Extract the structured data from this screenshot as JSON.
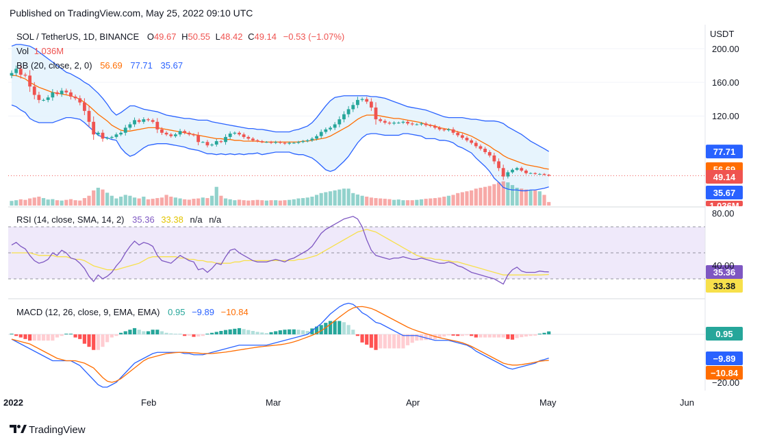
{
  "published": "Published on TradingView.com, May 25, 2022 09:10 UTC",
  "footer_brand": "TradingView",
  "currency_label": "USDT",
  "main_legend": {
    "symbol": "SOL / TetherUS, 1D, BINANCE",
    "o_label": "O",
    "o": "49.67",
    "h_label": "H",
    "h": "50.55",
    "l_label": "L",
    "l": "48.42",
    "c_label": "C",
    "c": "49.14",
    "change": "−0.53 (−1.07%)",
    "vol_label": "Vol",
    "vol": "1.036M",
    "bb_label": "BB (20, close, 2, 0)",
    "bb_basis": "56.69",
    "bb_upper": "77.71",
    "bb_lower": "35.67"
  },
  "rsi_legend": {
    "label": "RSI (14, close, SMA, 14, 2)",
    "rsi": "35.36",
    "sma": "33.38",
    "na1": "n/a",
    "na2": "n/a"
  },
  "macd_legend": {
    "label": "MACD (12, 26, close, 9, EMA, EMA)",
    "hist": "0.95",
    "macd": "−9.89",
    "signal": "−10.84"
  },
  "price_ticks": [
    "200.00",
    "160.00",
    "120.00"
  ],
  "rsi_ticks": [
    "80.00",
    "40.00"
  ],
  "macd_ticks": [
    "−20.00"
  ],
  "x_ticks": [
    "2022",
    "Feb",
    "Mar",
    "Apr",
    "May",
    "Jun"
  ],
  "tags": {
    "bb_upper": "77.71",
    "bb_basis": "56.69",
    "close": "49.14",
    "bb_lower": "35.67",
    "volume": "1.036M",
    "rsi": "35.36",
    "rsi_sma": "33.38",
    "macd_hist": "0.95",
    "macd": "−9.89",
    "macd_signal": "−10.84"
  },
  "colors": {
    "up": "#26a69a",
    "down": "#ef5350",
    "bb_basis": "#ff6d00",
    "bb_band": "#2962ff",
    "bb_fill": "#e3f2fd",
    "rsi_line": "#7e57c2",
    "rsi_sma": "#f7e04b",
    "rsi_bg": "#efe9fa",
    "macd_line": "#2962ff",
    "signal_line": "#ff6d00"
  },
  "chart_data": {
    "type": "candlestick",
    "title": "SOL / TetherUS, 1D, BINANCE",
    "start_date": "2021-12-31",
    "interval": "1D",
    "ylabel": "USDT",
    "ylim": [
      20,
      215
    ],
    "close": [
      171,
      176,
      169,
      168,
      155,
      145,
      139,
      139,
      142,
      148,
      146,
      150,
      148,
      143,
      141,
      136,
      126,
      113,
      98,
      100,
      93,
      94,
      95,
      98,
      100,
      106,
      110,
      115,
      113,
      116,
      115,
      113,
      104,
      100,
      98,
      96,
      98,
      102,
      100,
      98,
      97,
      89,
      89,
      85,
      86,
      90,
      89,
      95,
      99,
      100,
      98,
      95,
      93,
      91,
      90,
      89,
      89,
      88,
      89,
      88,
      87,
      88,
      88,
      89,
      90,
      91,
      93,
      96,
      101,
      104,
      106,
      110,
      116,
      122,
      128,
      133,
      139,
      140,
      137,
      130,
      116,
      114,
      112,
      111,
      112,
      112,
      113,
      111,
      110,
      110,
      111,
      109,
      108,
      106,
      104,
      103,
      104,
      100,
      97,
      94,
      91,
      88,
      84,
      81,
      77,
      73,
      66,
      58,
      48,
      53,
      56,
      58,
      55,
      52,
      52,
      51,
      51,
      50,
      49
    ],
    "bb_basis": [
      168,
      168,
      166,
      164,
      160,
      157,
      154,
      152,
      150,
      148,
      147,
      146,
      145,
      144,
      142,
      140,
      136,
      132,
      127,
      122,
      118,
      114,
      109,
      106,
      103,
      102,
      102,
      103,
      104,
      105,
      106,
      106,
      106,
      105,
      104,
      103,
      102,
      101,
      100,
      99,
      98,
      97,
      96,
      95,
      94,
      93,
      93,
      92,
      92,
      91,
      91,
      90,
      90,
      90,
      90,
      89,
      89,
      89,
      89,
      89,
      89,
      89,
      89,
      89,
      90,
      90,
      91,
      92,
      93,
      94,
      96,
      99,
      102,
      105,
      108,
      112,
      116,
      119,
      121,
      121,
      121,
      120,
      119,
      118,
      117,
      117,
      116,
      115,
      114,
      113,
      112,
      110,
      109,
      108,
      106,
      105,
      104,
      103,
      101,
      100,
      98,
      96,
      93,
      90,
      87,
      84,
      80,
      77,
      73,
      70,
      68,
      66,
      64,
      62,
      61,
      60,
      59,
      57.5,
      56.69
    ],
    "bb_upper": [
      203,
      205,
      205,
      204,
      203,
      200,
      196,
      192,
      188,
      184,
      180,
      176,
      172,
      170,
      167,
      164,
      160,
      157,
      152,
      147,
      141,
      134,
      126,
      121,
      124,
      128,
      132,
      132,
      130,
      128,
      127,
      126,
      125,
      123,
      121,
      120,
      119,
      118,
      117,
      117,
      116,
      115,
      115,
      115,
      113,
      112,
      111,
      110,
      109,
      108,
      107,
      106,
      105,
      105,
      104,
      104,
      103,
      102,
      101,
      101,
      101,
      101,
      103,
      104,
      106,
      108,
      112,
      118,
      125,
      132,
      138,
      142,
      143,
      144,
      144,
      144,
      144,
      144,
      144,
      143,
      143,
      142,
      141,
      139,
      137,
      135,
      133,
      131,
      130,
      129,
      128,
      127,
      125,
      123,
      121,
      119,
      118,
      118,
      118,
      118,
      117,
      116,
      116,
      115,
      114,
      114,
      114,
      113,
      111,
      107,
      104,
      101,
      98,
      94,
      90,
      87,
      84,
      81,
      77.71
    ],
    "bb_lower": [
      133,
      131,
      127,
      124,
      117,
      114,
      112,
      112,
      112,
      112,
      114,
      116,
      118,
      118,
      117,
      116,
      112,
      107,
      102,
      97,
      95,
      94,
      92,
      91,
      82,
      76,
      72,
      74,
      78,
      82,
      85,
      86,
      87,
      87,
      87,
      86,
      85,
      84,
      83,
      81,
      80,
      79,
      77,
      75,
      75,
      74,
      75,
      74,
      75,
      74,
      75,
      74,
      75,
      75,
      76,
      74,
      75,
      76,
      77,
      77,
      77,
      77,
      75,
      74,
      74,
      72,
      70,
      66,
      61,
      56,
      54,
      56,
      61,
      66,
      72,
      80,
      88,
      94,
      98,
      99,
      99,
      98,
      97,
      97,
      97,
      97,
      99,
      99,
      98,
      97,
      96,
      93,
      93,
      93,
      91,
      91,
      90,
      88,
      84,
      82,
      79,
      76,
      70,
      65,
      60,
      54,
      46,
      41,
      35,
      33,
      32,
      32,
      31,
      31,
      32,
      32,
      33,
      34,
      35.67
    ],
    "volume": [
      0.26,
      0.3,
      0.35,
      0.32,
      0.4,
      0.45,
      0.5,
      0.42,
      0.34,
      0.36,
      0.3,
      0.28,
      0.32,
      0.36,
      0.3,
      0.28,
      0.42,
      0.55,
      0.85,
      1.0,
      0.9,
      0.72,
      0.55,
      0.4,
      0.5,
      0.6,
      0.55,
      0.45,
      0.4,
      0.5,
      0.35,
      0.38,
      0.42,
      0.45,
      0.6,
      0.5,
      0.45,
      0.4,
      0.35,
      0.33,
      0.38,
      0.4,
      0.45,
      0.42,
      0.55,
      1.05,
      0.55,
      0.4,
      0.35,
      0.3,
      0.33,
      0.3,
      0.28,
      0.3,
      0.32,
      0.3,
      0.28,
      0.3,
      0.3,
      0.28,
      0.3,
      0.32,
      0.35,
      0.4,
      0.42,
      0.45,
      0.5,
      0.6,
      0.7,
      0.75,
      0.8,
      0.85,
      0.9,
      0.95,
      0.95,
      0.7,
      0.62,
      0.55,
      0.5,
      0.45,
      0.42,
      0.4,
      0.38,
      0.36,
      0.32,
      0.34,
      0.3,
      0.3,
      0.3,
      0.32,
      0.35,
      0.38,
      0.4,
      0.42,
      0.45,
      0.5,
      0.55,
      0.6,
      0.7,
      0.75,
      0.8,
      0.85,
      0.95,
      1.0,
      1.05,
      1.1,
      1.2,
      1.3,
      1.36,
      1.3,
      1.15,
      1.0,
      0.95,
      0.9,
      0.85,
      0.85,
      0.8,
      0.6,
      0.2
    ],
    "rsi": [
      56,
      58,
      55,
      53,
      48,
      44,
      42,
      43,
      45,
      50,
      48,
      52,
      50,
      46,
      45,
      42,
      38,
      32,
      28,
      33,
      30,
      32,
      35,
      40,
      44,
      50,
      55,
      59,
      56,
      58,
      57,
      55,
      48,
      44,
      43,
      42,
      45,
      48,
      46,
      44,
      43,
      37,
      38,
      35,
      38,
      42,
      41,
      47,
      52,
      53,
      50,
      48,
      46,
      44,
      43,
      43,
      43,
      44,
      45,
      44,
      43,
      45,
      46,
      48,
      50,
      52,
      55,
      60,
      65,
      68,
      70,
      72,
      74,
      76,
      77,
      78,
      76,
      70,
      60,
      52,
      48,
      47,
      46,
      45,
      46,
      46,
      47,
      46,
      45,
      45,
      46,
      45,
      44,
      43,
      42,
      42,
      43,
      42,
      40,
      39,
      37,
      35,
      34,
      33,
      32,
      31,
      30,
      28,
      26,
      33,
      37,
      39,
      36,
      35,
      35,
      35,
      36,
      35.5,
      35.36
    ],
    "rsi_sma": [
      50,
      50,
      50,
      50,
      50,
      49,
      48,
      48,
      48,
      48,
      47,
      47,
      47,
      46,
      45,
      45,
      44,
      42,
      40,
      39,
      38,
      37,
      37,
      37,
      38,
      39,
      40,
      41,
      42,
      44,
      46,
      47,
      47,
      47,
      47,
      47,
      47,
      46,
      46,
      45,
      45,
      44,
      44,
      43,
      43,
      42,
      42,
      42,
      42,
      43,
      43,
      44,
      44,
      44,
      44,
      44,
      44,
      44,
      44,
      44,
      44,
      44,
      44,
      45,
      45,
      46,
      47,
      48,
      50,
      52,
      54,
      56,
      58,
      60,
      62,
      64,
      66,
      67,
      68,
      67,
      66,
      64,
      62,
      60,
      58,
      56,
      54,
      52,
      50,
      48,
      47,
      46,
      46,
      45,
      45,
      44,
      44,
      43,
      43,
      42,
      41,
      40,
      39,
      38,
      37,
      36,
      35,
      34,
      33,
      33,
      33,
      33,
      33,
      33,
      33,
      33,
      33,
      33.2,
      33.38
    ],
    "macd": [
      -2,
      -3,
      -4,
      -5,
      -6,
      -7,
      -8,
      -9,
      -10,
      -11,
      -11,
      -11,
      -11,
      -11,
      -12,
      -13,
      -15,
      -17,
      -19,
      -21,
      -22,
      -22,
      -21,
      -20,
      -18,
      -16,
      -14,
      -12,
      -11,
      -10,
      -9,
      -8,
      -7.5,
      -7.5,
      -7.5,
      -7.5,
      -7.5,
      -7.5,
      -8,
      -8,
      -8.5,
      -8.5,
      -8.5,
      -8,
      -7.5,
      -7,
      -6.5,
      -6,
      -5.5,
      -5,
      -4.5,
      -4.5,
      -4.5,
      -4.5,
      -4.5,
      -4.5,
      -4.5,
      -4,
      -3.5,
      -3,
      -2.5,
      -2,
      -1.5,
      -1,
      -0.5,
      0,
      1.5,
      3,
      4.5,
      6.5,
      8.5,
      10,
      11.5,
      12.5,
      13,
      12.5,
      11,
      9,
      8,
      6.5,
      5,
      4.5,
      3.5,
      2.5,
      1.5,
      0.5,
      -0.5,
      -0.5,
      -0.5,
      -0.5,
      -1,
      -1.5,
      -2,
      -2.5,
      -2.5,
      -2.5,
      -2.5,
      -3,
      -3.5,
      -4,
      -4.5,
      -5.5,
      -7,
      -8,
      -9,
      -10,
      -11,
      -12,
      -13,
      -14,
      -14.5,
      -14,
      -13.5,
      -13,
      -12.5,
      -12,
      -11,
      -10.5,
      -9.89
    ],
    "signal": [
      -2,
      -2.5,
      -3,
      -3.5,
      -4,
      -5,
      -6,
      -7,
      -8,
      -9,
      -10,
      -10.5,
      -11,
      -11,
      -11,
      -11.5,
      -12,
      -13,
      -14,
      -16,
      -18,
      -19.5,
      -20,
      -19.5,
      -18.5,
      -17,
      -15.5,
      -14,
      -12.5,
      -11,
      -10,
      -9.5,
      -9,
      -8.5,
      -8,
      -7.8,
      -7.6,
      -7.5,
      -7.5,
      -7.6,
      -7.7,
      -7.8,
      -8,
      -8,
      -8,
      -7.8,
      -7.6,
      -7.4,
      -7.1,
      -6.8,
      -6.5,
      -6.2,
      -5.9,
      -5.6,
      -5.3,
      -5.1,
      -4.9,
      -4.7,
      -4.5,
      -4.3,
      -4,
      -3.6,
      -3.1,
      -2.5,
      -1.8,
      -1.1,
      -0.4,
      0.5,
      1.5,
      2.8,
      4.2,
      5.7,
      7.2,
      8.6,
      10,
      11,
      11.5,
      11.6,
      11.3,
      10.8,
      10,
      9,
      8,
      7,
      6,
      5,
      4,
      3,
      2.2,
      1.5,
      0.9,
      0.3,
      -0.3,
      -0.9,
      -1.4,
      -1.8,
      -2.2,
      -2.6,
      -3,
      -3.5,
      -4.2,
      -5,
      -6,
      -7,
      -8,
      -9,
      -10,
      -11,
      -12,
      -12.5,
      -12.8,
      -12.8,
      -12.6,
      -12.3,
      -12,
      -11.6,
      -11.2,
      -11,
      -10.84
    ]
  }
}
